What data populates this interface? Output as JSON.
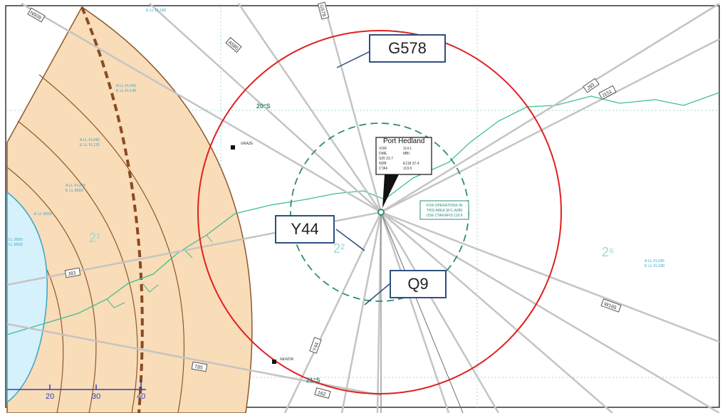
{
  "callouts": {
    "g578": "G578",
    "y44": "Y44",
    "q9": "Q9"
  },
  "airport": {
    "name": "Port Hedland",
    "rows": [
      {
        "k": "VOR",
        "v": "114.1"
      },
      {
        "k": "DME",
        "v": "MBI"
      },
      {
        "k": "",
        "v": "S20 22.7"
      },
      {
        "k": "NDB",
        "v": "E118 37.4"
      },
      {
        "k": "CTAF",
        "v": "119.9"
      }
    ],
    "ctaf_note": [
      "FOR OPERATIONS IN",
      "THIS AREA SFC-A085",
      "USE CTAF(AFIS 119.9"
    ]
  },
  "routes": {
    "n509": "N509",
    "a585": "A585",
    "g578": "G578",
    "j93": "J93",
    "j151": "J151",
    "j83": "J83",
    "w165": "W165",
    "t85": "T85",
    "y44": "Y44",
    "route_162": "162"
  },
  "latitudes": {
    "lat20": "20°S",
    "lat21": "21°S"
  },
  "zones": {
    "z21": "2¹",
    "z22": "2²",
    "z26": "2⁶"
  },
  "airspace": {
    "a1": [
      "A LL FL245",
      "E LL FL145"
    ],
    "a2": [
      "A LL FL245",
      "E LL FL115"
    ],
    "a3": [
      "A LL FL245",
      "E LL 8500"
    ],
    "a4": [
      "E LL 6500"
    ],
    "a5": [
      "A LL FL245",
      "E LL FL180"
    ],
    "top": "E LL FL180",
    "left": [
      "LL 3500",
      "LL 5500"
    ]
  },
  "waypoints": {
    "graze": "GRAZE",
    "newor": "NEWOR"
  },
  "scale": {
    "ticks": [
      "20",
      "30",
      "40"
    ]
  },
  "colors": {
    "callout_border": "#2f4f7f",
    "circle": "#e02020",
    "terminal": "#2e8b77",
    "coast": "#3fbf8f",
    "sector": "#f9dcb8"
  }
}
